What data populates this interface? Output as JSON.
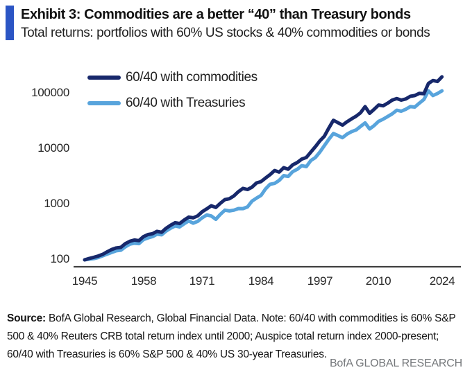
{
  "header": {
    "exhibit_title": "Exhibit 3: Commodities are a better “40” than Treasury bonds",
    "subtitle": "Total returns: portfolios with 60% US stocks & 40% commodities or bonds"
  },
  "chart_data": {
    "type": "line",
    "title": "",
    "xlabel": "",
    "ylabel": "",
    "y_scale": "log",
    "grid": false,
    "legend_position": "top-left",
    "xlim": [
      1945,
      2024
    ],
    "ylim": [
      100,
      300000
    ],
    "xtick_labels": [
      "1945",
      "1958",
      "1971",
      "1984",
      "1997",
      "2010",
      "2024"
    ],
    "xtick_years": [
      1945,
      1958,
      1971,
      1984,
      1997,
      2010,
      2024
    ],
    "ytick_labels": [
      "100000",
      "10000",
      "1000",
      "100"
    ],
    "ytick_values": [
      100000,
      10000,
      1000,
      100
    ],
    "x": [
      1945,
      1946,
      1947,
      1948,
      1949,
      1950,
      1951,
      1952,
      1953,
      1954,
      1955,
      1956,
      1957,
      1958,
      1959,
      1960,
      1961,
      1962,
      1963,
      1964,
      1965,
      1966,
      1967,
      1968,
      1969,
      1970,
      1971,
      1972,
      1973,
      1974,
      1975,
      1976,
      1977,
      1978,
      1979,
      1980,
      1981,
      1982,
      1983,
      1984,
      1985,
      1986,
      1987,
      1988,
      1989,
      1990,
      1991,
      1992,
      1993,
      1994,
      1995,
      1996,
      1997,
      1998,
      1999,
      2000,
      2001,
      2002,
      2003,
      2004,
      2005,
      2006,
      2007,
      2008,
      2009,
      2010,
      2011,
      2012,
      2013,
      2014,
      2015,
      2016,
      2017,
      2018,
      2019,
      2020,
      2021,
      2022,
      2023,
      2024
    ],
    "series": [
      {
        "name": "60/40 with commodities",
        "color": "#17286b",
        "values": [
          100,
          106,
          111,
          117,
          126,
          140,
          154,
          164,
          168,
          196,
          216,
          228,
          222,
          262,
          286,
          296,
          326,
          314,
          372,
          420,
          468,
          452,
          522,
          590,
          572,
          622,
          740,
          832,
          948,
          880,
          1050,
          1220,
          1265,
          1425,
          1700,
          1945,
          1855,
          2050,
          2440,
          2580,
          2995,
          3450,
          4090,
          3820,
          4600,
          4310,
          5180,
          5690,
          6560,
          7020,
          8780,
          10960,
          13960,
          16980,
          23900,
          32900,
          29800,
          26900,
          30900,
          34900,
          38900,
          44900,
          58000,
          44000,
          52000,
          62000,
          60000,
          67000,
          76000,
          81000,
          76000,
          80000,
          89000,
          92000,
          101000,
          99000,
          152000,
          172000,
          165000,
          200000
        ]
      },
      {
        "name": "60/40 with Treasuries",
        "color": "#58a4dc",
        "values": [
          100,
          103,
          105,
          110,
          118,
          127,
          136,
          146,
          149,
          172,
          192,
          199,
          196,
          232,
          248,
          262,
          290,
          283,
          330,
          372,
          408,
          392,
          448,
          502,
          458,
          495,
          575,
          645,
          618,
          538,
          662,
          788,
          762,
          788,
          842,
          838,
          902,
          1148,
          1298,
          1452,
          1905,
          2310,
          2395,
          2705,
          3305,
          3195,
          3905,
          4295,
          4995,
          4795,
          6190,
          6990,
          8790,
          11490,
          14990,
          18990,
          17490,
          15990,
          18490,
          20490,
          21990,
          25490,
          29490,
          22990,
          26490,
          31490,
          34490,
          38490,
          42990,
          49990,
          47990,
          51990,
          57990,
          56990,
          66990,
          77990,
          112000,
          92000,
          100000,
          112000
        ]
      }
    ]
  },
  "footer": {
    "source_label": "Source:",
    "source_note": " BofA Global Research, Global Financial Data. Note: 60/40 with commodities is 60% S&P 500 & 40% Reuters CRB total return index until 2000; Auspice total return index 2000-present; 60/40 with Treasuries is 60% S&P 500 & 40% US 30-year Treasuries.",
    "brand": "BofA GLOBAL RESEARCH"
  },
  "colors": {
    "accent_bar": "#2b55c4",
    "commodities_line": "#17286b",
    "treasuries_line": "#58a4dc",
    "axis_line": "#404040",
    "brand_text": "#75787b"
  }
}
